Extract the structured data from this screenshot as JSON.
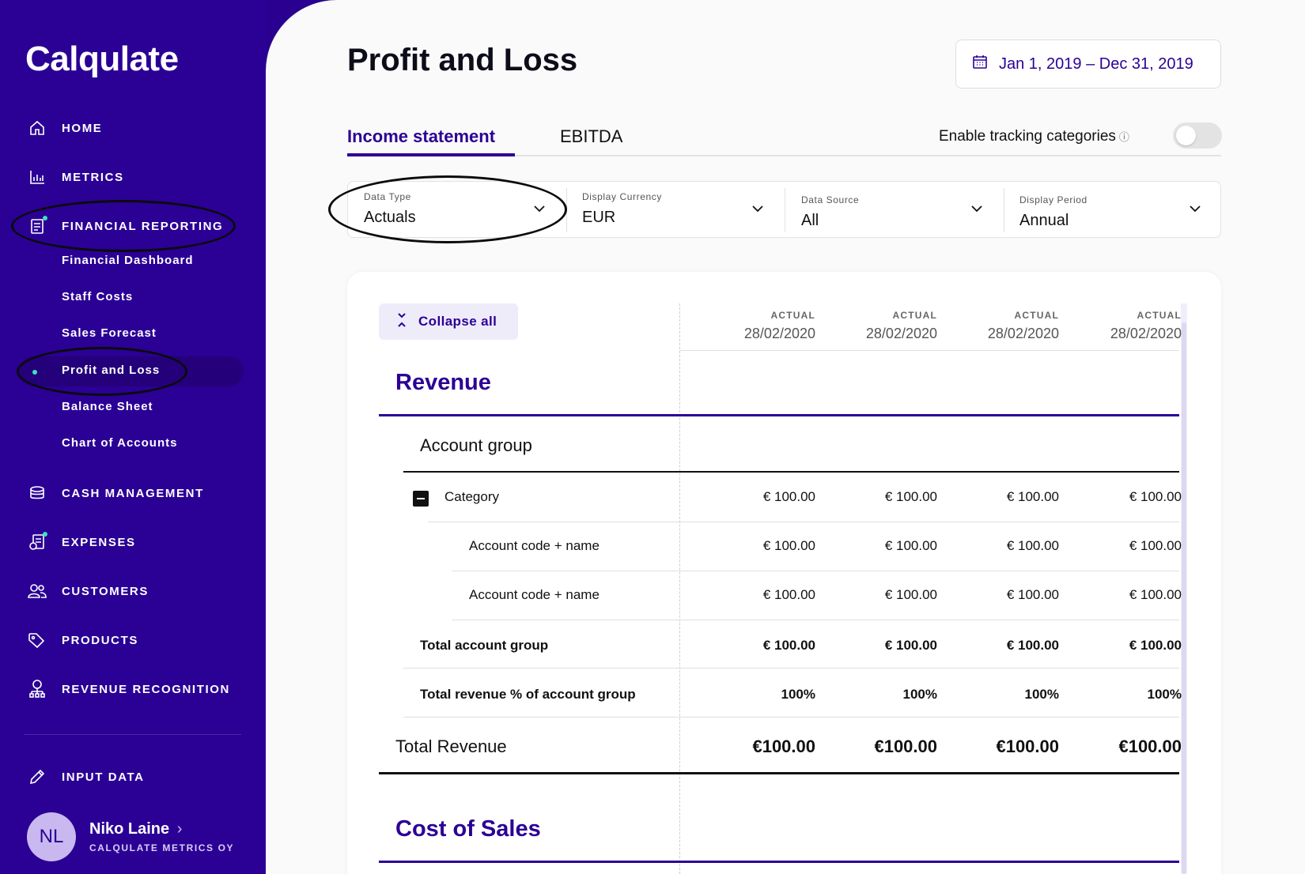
{
  "app": {
    "logo": "Calqulate"
  },
  "sidebar": {
    "nav": [
      {
        "id": "home",
        "label": "HOME",
        "icon": "home-icon"
      },
      {
        "id": "metrics",
        "label": "METRICS",
        "icon": "bar-chart-icon"
      },
      {
        "id": "financial-reporting",
        "label": "FINANCIAL REPORTING",
        "icon": "report-icon"
      },
      {
        "id": "cash-management",
        "label": "CASH MANAGEMENT",
        "icon": "coins-icon"
      },
      {
        "id": "expenses",
        "label": "EXPENSES",
        "icon": "receipt-icon"
      },
      {
        "id": "customers",
        "label": "CUSTOMERS",
        "icon": "users-icon"
      },
      {
        "id": "products",
        "label": "PRODUCTS",
        "icon": "tag-icon"
      },
      {
        "id": "revenue-recognition",
        "label": "REVENUE RECOGNITION",
        "icon": "org-chart-icon"
      },
      {
        "id": "input-data",
        "label": "INPUT DATA",
        "icon": "pencil-icon"
      }
    ],
    "sub": [
      "Financial Dashboard",
      "Staff Costs",
      "Sales Forecast",
      "Profit and Loss",
      "Balance Sheet",
      "Chart of Accounts"
    ],
    "user": {
      "initials": "NL",
      "name": "Niko Laine",
      "org": "CALQULATE METRICS OY"
    }
  },
  "header": {
    "title": "Profit and Loss",
    "date_range": "Jan 1, 2019 – Dec 31, 2019"
  },
  "tabs": {
    "income": "Income statement",
    "ebitda": "EBITDA",
    "tracking": "Enable tracking categories",
    "tracking_enabled": false
  },
  "filters": [
    {
      "label": "Data Type",
      "value": "Actuals"
    },
    {
      "label": "Display Currency",
      "value": "EUR"
    },
    {
      "label": "Data Source",
      "value": "All"
    },
    {
      "label": "Display Period",
      "value": "Annual"
    }
  ],
  "table": {
    "collapse_label": "Collapse all",
    "columns": [
      {
        "type": "ACTUAL",
        "date": "28/02/2020"
      },
      {
        "type": "ACTUAL",
        "date": "28/02/2020"
      },
      {
        "type": "ACTUAL",
        "date": "28/02/2020"
      },
      {
        "type": "ACTUAL",
        "date": "28/02/2020"
      }
    ],
    "revenue_title": "Revenue",
    "account_group": "Account group",
    "category": {
      "label": "Category",
      "values": [
        "€ 100.00",
        "€ 100.00",
        "€ 100.00",
        "€ 100.00"
      ]
    },
    "accounts": [
      {
        "label": "Account code + name",
        "values": [
          "€ 100.00",
          "€ 100.00",
          "€ 100.00",
          "€ 100.00"
        ]
      },
      {
        "label": "Account code + name",
        "values": [
          "€ 100.00",
          "€ 100.00",
          "€ 100.00",
          "€ 100.00"
        ]
      }
    ],
    "total_account_group": {
      "label": "Total account group",
      "values": [
        "€ 100.00",
        "€ 100.00",
        "€ 100.00",
        "€ 100.00"
      ]
    },
    "total_revenue_pct": {
      "label": "Total revenue % of account group",
      "values": [
        "100%",
        "100%",
        "100%",
        "100%"
      ]
    },
    "total_revenue": {
      "label": "Total Revenue",
      "values": [
        "€100.00",
        "€100.00",
        "€100.00",
        "€100.00"
      ]
    },
    "cost_title": "Cost of Sales"
  }
}
